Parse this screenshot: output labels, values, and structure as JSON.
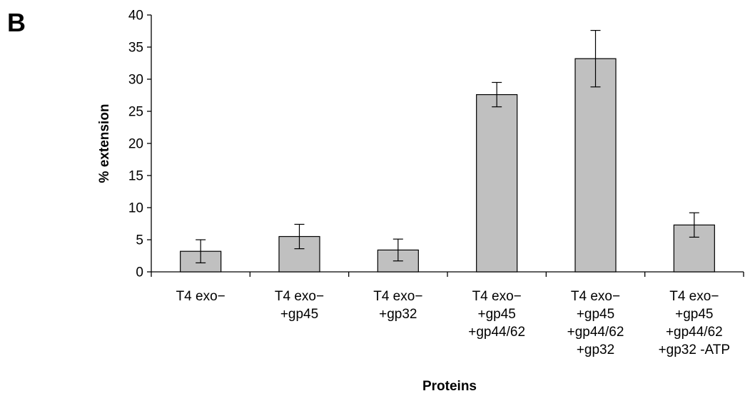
{
  "panel_label": "B",
  "chart_data": {
    "type": "bar",
    "title": "",
    "xlabel": "Proteins",
    "ylabel": "% extension",
    "ylim": [
      0,
      40
    ],
    "yticks": [
      0,
      5,
      10,
      15,
      20,
      25,
      30,
      35,
      40
    ],
    "grid": false,
    "legend": "none",
    "bar_color": "#c0c0c0",
    "categories": [
      [
        "T4 exo−"
      ],
      [
        "T4 exo−",
        "+gp45"
      ],
      [
        "T4 exo−",
        "+gp32"
      ],
      [
        "T4 exo−",
        "+gp45",
        "+gp44/62"
      ],
      [
        "T4 exo−",
        "+gp45",
        "+gp44/62",
        "+gp32"
      ],
      [
        "T4 exo−",
        "+gp45",
        "+gp44/62",
        "+gp32 -ATP"
      ]
    ],
    "values": [
      3.2,
      5.5,
      3.4,
      27.6,
      33.2,
      7.3
    ],
    "error": [
      1.8,
      1.9,
      1.7,
      1.9,
      4.4,
      1.9
    ]
  }
}
